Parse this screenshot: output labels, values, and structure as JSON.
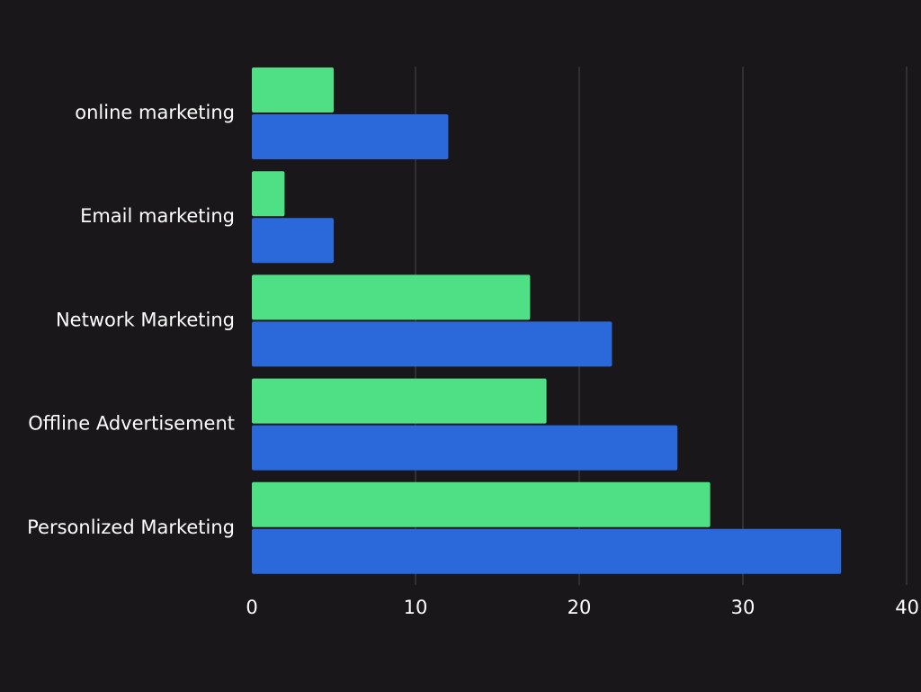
{
  "colors": {
    "background": "#19171a",
    "text": "#ffffff",
    "gridline": "#4a484c",
    "series_green": "#4fe085",
    "series_blue": "#2b68d9"
  },
  "chart_data": {
    "type": "bar",
    "orientation": "horizontal",
    "categories": [
      "online marketing",
      "Email marketing",
      "Network Marketing",
      "Offline Advertisement",
      "Personlized Marketing"
    ],
    "series": [
      {
        "color": "#4fe085",
        "values": [
          5,
          2,
          17,
          18,
          28
        ]
      },
      {
        "color": "#2b68d9",
        "values": [
          12,
          5,
          22,
          26,
          36
        ]
      }
    ],
    "xlim": [
      0,
      40
    ],
    "x_ticks": [
      "0",
      "10",
      "20",
      "30",
      "40"
    ],
    "grid": "vertical",
    "legend": "none"
  }
}
